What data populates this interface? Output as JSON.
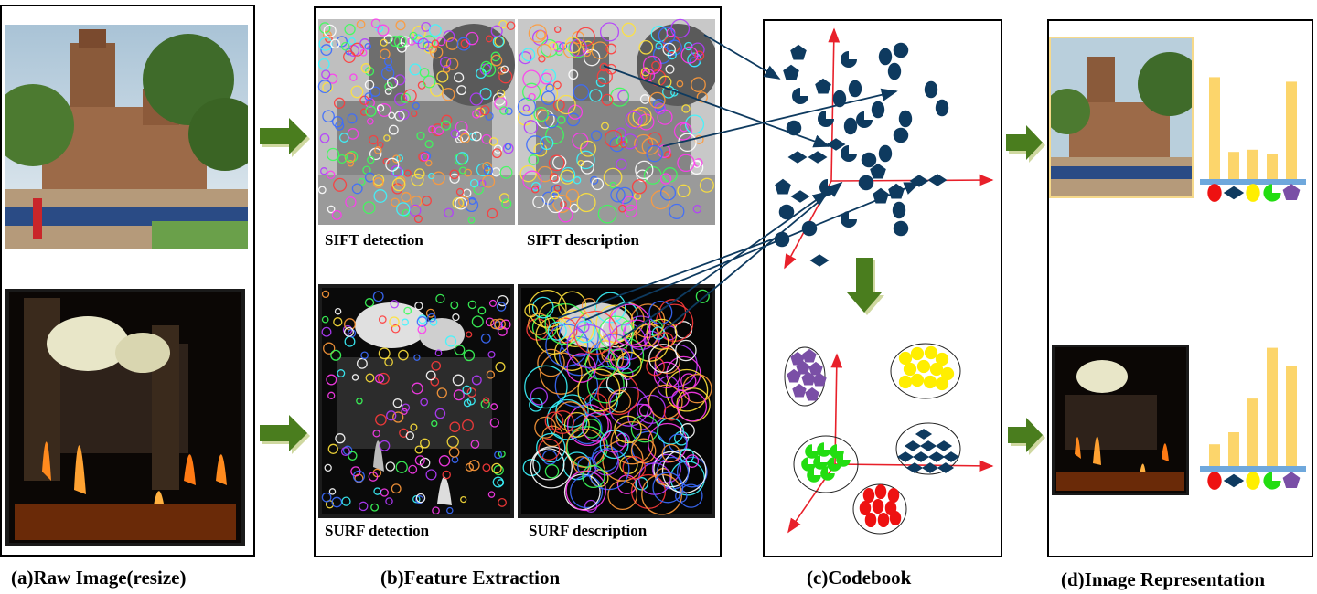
{
  "captions": {
    "raw": "(a)Raw Image(resize)",
    "feature": "(b)Feature Extraction",
    "codebook": "(c)Codebook",
    "representation": "(d)Image Representation"
  },
  "labels": {
    "sift_detection": "SIFT detection",
    "sift_description": "SIFT description",
    "surf_detection": "SURF detection",
    "surf_description": "SURF description"
  },
  "colors": {
    "arrow_green": "#4a7d1e",
    "axis_red": "#e8202a",
    "feature_navy": "#0e3a5f",
    "bar_yellow": "#fcd56b",
    "baseline_blue": "#6fa8dc",
    "cluster_purple": "#7a4fa6",
    "cluster_yellow": "#ffee00",
    "cluster_green": "#22dd11",
    "cluster_red": "#ee1111"
  },
  "histograms": [
    {
      "values": [
        0.9,
        0.24,
        0.26,
        0.22,
        0.86
      ]
    },
    {
      "values": [
        0.18,
        0.28,
        0.56,
        0.98,
        0.83
      ]
    }
  ],
  "icons": [
    "circle",
    "diamond",
    "oval",
    "pacman",
    "pentagon"
  ]
}
